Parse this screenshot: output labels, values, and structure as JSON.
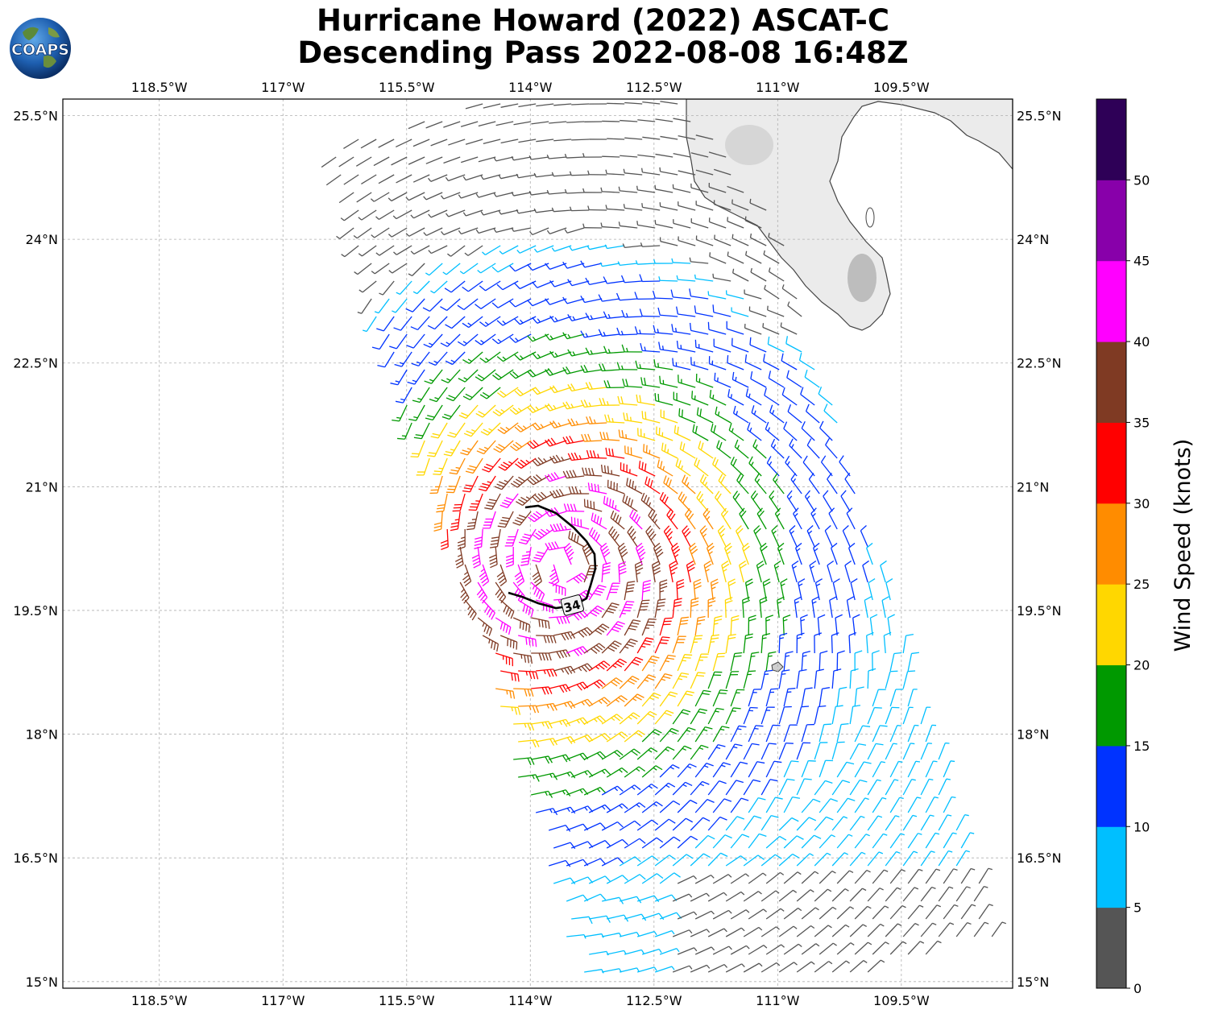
{
  "title": {
    "line1": "Hurricane Howard (2022) ASCAT-C",
    "line2": "Descending Pass 2022-08-08 16:48Z"
  },
  "logo": {
    "text": "COAPS"
  },
  "map": {
    "lon_labels": [
      "118.5°W",
      "117°W",
      "115.5°W",
      "114°W",
      "112.5°W",
      "111°W",
      "109.5°W"
    ],
    "lon_values": [
      -118.5,
      -117,
      -115.5,
      -114,
      -112.5,
      -111,
      -109.5
    ],
    "lat_labels": [
      "25.5°N",
      "24°N",
      "22.5°N",
      "21°N",
      "19.5°N",
      "18°N",
      "16.5°N",
      "15°N"
    ],
    "lat_values": [
      25.5,
      24,
      22.5,
      21,
      19.5,
      18,
      16.5,
      15
    ],
    "lon_range": [
      -119.67,
      -108.15
    ],
    "lat_range": [
      14.92,
      25.7
    ],
    "gridlines": true,
    "storm_center": {
      "lon": -113.6,
      "lat": 20.05
    },
    "wind_radius_label": "34",
    "wind_radius_kt": 34
  },
  "colorbar": {
    "label": "Wind Speed (knots)",
    "ticks": [
      "0",
      "5",
      "10",
      "15",
      "20",
      "25",
      "30",
      "35",
      "40",
      "45",
      "50"
    ],
    "colors": [
      "#555555",
      "#00bfff",
      "#0033ff",
      "#009900",
      "#ffd700",
      "#ff8c00",
      "#ff0000",
      "#7f3a23",
      "#ff00ff",
      "#8800aa",
      "#2e0057"
    ]
  }
}
